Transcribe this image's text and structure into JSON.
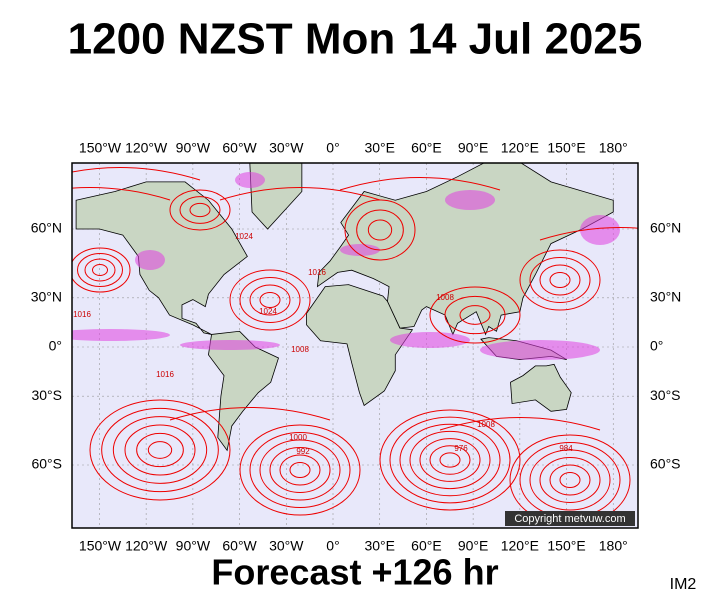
{
  "header": {
    "title": "1200 NZST Mon 14 Jul 2025"
  },
  "map": {
    "longitude_labels": [
      "150°W",
      "120°W",
      "90°W",
      "60°W",
      "30°W",
      "0°",
      "30°E",
      "60°E",
      "90°E",
      "120°E",
      "150°E",
      "180°"
    ],
    "latitude_labels": [
      "60°N",
      "30°N",
      "0°",
      "30°S",
      "60°S"
    ],
    "pressure_labels": [
      "1024",
      "1016",
      "1008",
      "1016",
      "1024",
      "1016",
      "1008",
      "1000",
      "992",
      "976",
      "984",
      "1008"
    ],
    "copyright": "Copyright metvuw.com"
  },
  "footer": {
    "forecast": "Forecast +126 hr",
    "code": "IM2"
  }
}
